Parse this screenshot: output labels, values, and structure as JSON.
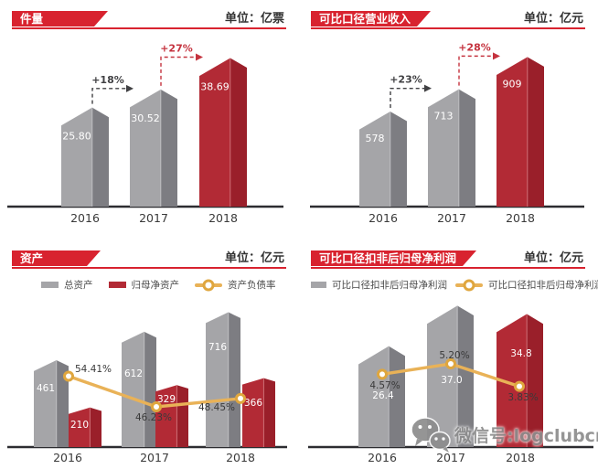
{
  "colors": {
    "banner_red": "#d8232f",
    "bar_gray_front": "#a5a5a8",
    "bar_gray_side": "#7d7d82",
    "bar_gray_ridge": "#bfbfc2",
    "bar_red_front": "#b22a35",
    "bar_red_side": "#9a1f2a",
    "bar_red_ridge": "#cf7077",
    "line_gold": "#e9b257",
    "marker_gold": "#dfa63e",
    "axis_dark": "#2c2c30",
    "arrow_dark": "#404043",
    "arrow_red": "#c5333f",
    "text_dark": "#3a3a3a",
    "bar_label_white": "#ffffff"
  },
  "watermark": {
    "icon": "wechat-icon",
    "text": "微信号:logclubcn"
  },
  "chart_data": [
    {
      "type": "bar",
      "title": "件量",
      "unit": "单位：亿票",
      "categories": [
        "2016",
        "2017",
        "2018"
      ],
      "values": [
        25.8,
        30.52,
        38.69
      ],
      "value_labels": [
        "25.80",
        "30.52",
        "38.69"
      ],
      "growth_labels": [
        "+18%",
        "+27%"
      ]
    },
    {
      "type": "bar",
      "title": "可比口径营业收入",
      "unit": "单位：亿元",
      "categories": [
        "2016",
        "2017",
        "2018"
      ],
      "values": [
        578,
        713,
        909
      ],
      "value_labels": [
        "578",
        "713",
        "909"
      ],
      "growth_labels": [
        "+23%",
        "+28%"
      ]
    },
    {
      "type": "bar+line",
      "title": "资产",
      "unit": "单位：亿元",
      "categories": [
        "2016",
        "2017",
        "2018"
      ],
      "series": [
        {
          "name": "总资产",
          "color": "gray",
          "values": [
            461,
            612,
            716
          ],
          "value_labels": [
            "461",
            "612",
            "716"
          ]
        },
        {
          "name": "归母净资产",
          "color": "red",
          "values": [
            210,
            329,
            366
          ],
          "value_labels": [
            "210",
            "329",
            "366"
          ]
        }
      ],
      "line": {
        "name": "资产负债率",
        "values": [
          54.41,
          46.23,
          48.45
        ],
        "value_labels": [
          "54.41%",
          "46.23%",
          "48.45%"
        ]
      }
    },
    {
      "type": "bar+line",
      "title": "可比口径扣非后归母净利润",
      "unit": "单位：亿元",
      "categories": [
        "2016",
        "2017",
        "2018"
      ],
      "series": [
        {
          "name": "可比口径扣非后归母净利润",
          "color": "gray-gray-red",
          "values": [
            26.4,
            37.0,
            34.8
          ],
          "value_labels": [
            "26.4",
            "37.0",
            "34.8"
          ]
        }
      ],
      "line": {
        "name": "可比口径扣非后归母净利润率",
        "values": [
          4.57,
          5.2,
          3.83
        ],
        "value_labels": [
          "4.57%",
          "5.20%",
          "3.83%"
        ]
      }
    }
  ]
}
